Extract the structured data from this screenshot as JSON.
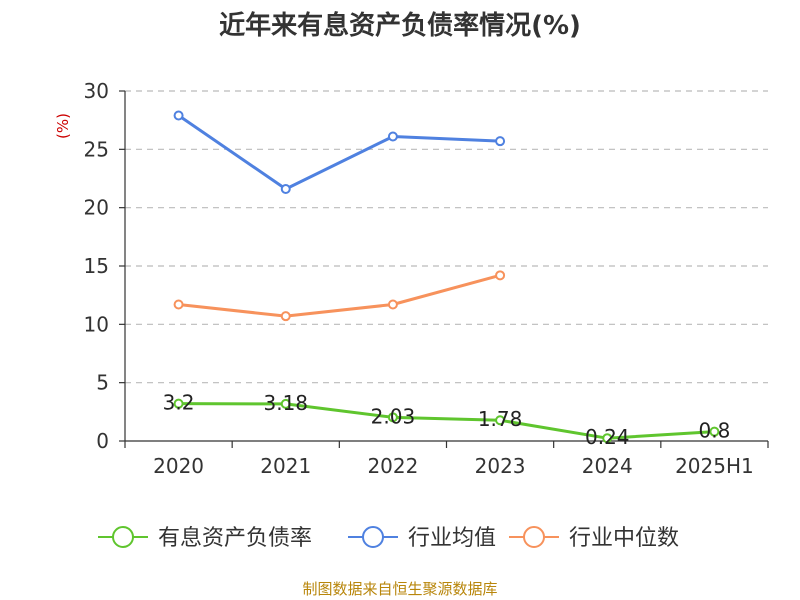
{
  "chart_data": {
    "type": "line",
    "title": "近年来有息资产负债率情况(%)",
    "unit_label": "(%)",
    "categories": [
      "2020",
      "2021",
      "2022",
      "2023",
      "2024",
      "2025H1"
    ],
    "y_ticks": [
      "0",
      "5",
      "10",
      "15",
      "20",
      "25",
      "30"
    ],
    "ylim": [
      0,
      30
    ],
    "grid": true,
    "legend_position": "bottom",
    "series": [
      {
        "name": "有息资产负债率",
        "color": "#5fc52e",
        "values": [
          3.2,
          3.18,
          2.03,
          1.78,
          0.24,
          0.8
        ],
        "labels": [
          "3.2",
          "3.18",
          "2.03",
          "1.78",
          "0.24",
          "0.8"
        ]
      },
      {
        "name": "行业均值",
        "color": "#4f81e0",
        "values": [
          27.9,
          21.6,
          26.1,
          25.7,
          null,
          null
        ]
      },
      {
        "name": "行业中位数",
        "color": "#f7925c",
        "values": [
          11.7,
          10.7,
          11.7,
          14.2,
          null,
          null
        ]
      }
    ],
    "source": "制图数据来自恒生聚源数据库"
  }
}
